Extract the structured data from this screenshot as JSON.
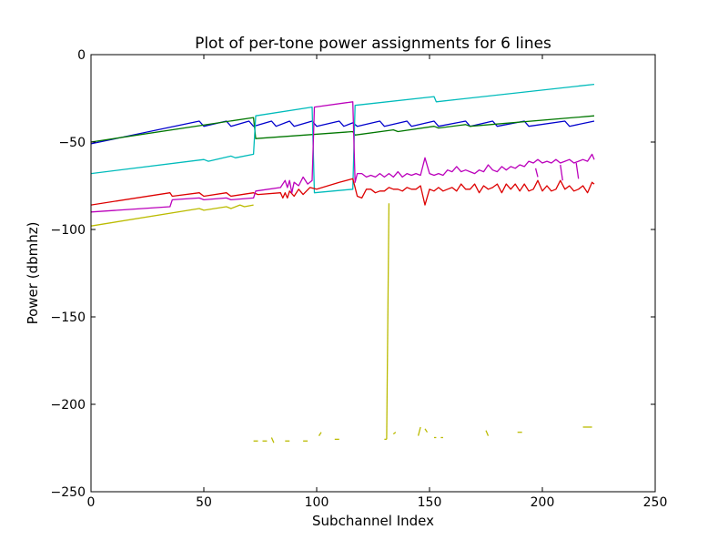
{
  "chart_data": {
    "type": "line",
    "title": "Plot of per-tone power assignments for 6 lines",
    "xlabel": "Subchannel Index",
    "ylabel": "Power (dbmhz)",
    "xlim": [
      0,
      250
    ],
    "ylim": [
      -250,
      0
    ],
    "xticks": [
      0,
      50,
      100,
      150,
      200,
      250
    ],
    "yticks": [
      0,
      -50,
      -100,
      -150,
      -200,
      -250
    ],
    "grid": false,
    "legend": "none",
    "series": [
      {
        "color": "#0000cc",
        "segments": [
          [
            [
              0,
              -51
            ],
            [
              48,
              -38
            ],
            [
              50,
              -41
            ],
            [
              60,
              -38
            ],
            [
              62,
              -41
            ],
            [
              70,
              -38
            ],
            [
              72,
              -41
            ],
            [
              80,
              -38
            ],
            [
              82,
              -41
            ],
            [
              88,
              -38
            ],
            [
              90,
              -41
            ],
            [
              98,
              -38
            ],
            [
              100,
              -41
            ],
            [
              110,
              -38
            ],
            [
              112,
              -41
            ],
            [
              116,
              -39
            ],
            [
              118,
              -41
            ],
            [
              128,
              -38
            ],
            [
              130,
              -41
            ],
            [
              140,
              -38
            ],
            [
              142,
              -41
            ],
            [
              152,
              -38
            ],
            [
              154,
              -41
            ],
            [
              166,
              -38
            ],
            [
              168,
              -41
            ],
            [
              178,
              -38
            ],
            [
              180,
              -41
            ],
            [
              192,
              -38
            ],
            [
              194,
              -41
            ],
            [
              210,
              -38
            ],
            [
              212,
              -41
            ],
            [
              223,
              -38
            ]
          ]
        ]
      },
      {
        "color": "#007700",
        "segments": [
          [
            [
              0,
              -50
            ],
            [
              72,
              -36
            ],
            [
              73,
              -48
            ],
            [
              116,
              -44
            ],
            [
              117,
              -46
            ],
            [
              134,
              -43
            ],
            [
              136,
              -44
            ],
            [
              152,
              -41
            ],
            [
              154,
              -42
            ],
            [
              166,
              -40
            ],
            [
              168,
              -41
            ],
            [
              223,
              -35
            ]
          ]
        ]
      },
      {
        "color": "#00bbbb",
        "segments": [
          [
            [
              0,
              -68
            ],
            [
              50,
              -60
            ],
            [
              52,
              -61
            ],
            [
              62,
              -58
            ],
            [
              64,
              -59
            ],
            [
              72,
              -57
            ],
            [
              73,
              -35
            ],
            [
              98,
              -30
            ],
            [
              99,
              -79
            ],
            [
              116,
              -77
            ],
            [
              117,
              -29
            ],
            [
              152,
              -24
            ],
            [
              153,
              -27
            ],
            [
              223,
              -17
            ]
          ]
        ]
      },
      {
        "color": "#dd0000",
        "segments": [
          [
            [
              0,
              -86
            ],
            [
              35,
              -79
            ],
            [
              36,
              -81
            ],
            [
              48,
              -79
            ],
            [
              50,
              -81
            ],
            [
              60,
              -79
            ],
            [
              62,
              -81
            ],
            [
              72,
              -79
            ],
            [
              74,
              -80
            ],
            [
              84,
              -79
            ],
            [
              85,
              -82
            ],
            [
              86,
              -79
            ],
            [
              87,
              -82
            ],
            [
              88,
              -78
            ],
            [
              90,
              -81
            ],
            [
              92,
              -77
            ],
            [
              94,
              -80
            ],
            [
              97,
              -76
            ],
            [
              100,
              -77
            ],
            [
              105,
              -75
            ],
            [
              110,
              -73
            ],
            [
              116,
              -71
            ],
            [
              117,
              -76
            ],
            [
              118,
              -81
            ],
            [
              120,
              -82
            ],
            [
              122,
              -77
            ],
            [
              124,
              -77
            ],
            [
              126,
              -79
            ],
            [
              128,
              -78
            ],
            [
              130,
              -78
            ],
            [
              132,
              -76
            ],
            [
              134,
              -77
            ],
            [
              136,
              -77
            ],
            [
              138,
              -78
            ],
            [
              140,
              -76
            ],
            [
              142,
              -77
            ],
            [
              144,
              -77
            ],
            [
              146,
              -75
            ],
            [
              148,
              -86
            ],
            [
              150,
              -77
            ],
            [
              152,
              -78
            ],
            [
              154,
              -76
            ],
            [
              156,
              -78
            ],
            [
              158,
              -77
            ],
            [
              160,
              -76
            ],
            [
              162,
              -78
            ],
            [
              164,
              -74
            ],
            [
              166,
              -77
            ],
            [
              168,
              -77
            ],
            [
              170,
              -74
            ],
            [
              172,
              -79
            ],
            [
              174,
              -75
            ],
            [
              176,
              -77
            ],
            [
              178,
              -76
            ],
            [
              180,
              -74
            ],
            [
              182,
              -79
            ],
            [
              184,
              -74
            ],
            [
              186,
              -77
            ],
            [
              188,
              -74
            ],
            [
              190,
              -78
            ],
            [
              192,
              -74
            ],
            [
              194,
              -78
            ],
            [
              196,
              -77
            ],
            [
              198,
              -72
            ],
            [
              200,
              -78
            ],
            [
              202,
              -75
            ],
            [
              204,
              -78
            ],
            [
              206,
              -77
            ],
            [
              208,
              -72
            ],
            [
              210,
              -77
            ],
            [
              212,
              -75
            ],
            [
              214,
              -78
            ],
            [
              216,
              -77
            ],
            [
              218,
              -75
            ],
            [
              220,
              -79
            ],
            [
              222,
              -73
            ],
            [
              223,
              -74
            ]
          ]
        ]
      },
      {
        "color": "#bb00bb",
        "segments": [
          [
            [
              0,
              -90
            ],
            [
              35,
              -87
            ],
            [
              36,
              -83
            ],
            [
              48,
              -82
            ],
            [
              50,
              -83
            ],
            [
              60,
              -82
            ],
            [
              62,
              -83
            ],
            [
              72,
              -82
            ],
            [
              73,
              -78
            ],
            [
              84,
              -76
            ],
            [
              86,
              -72
            ],
            [
              87,
              -76
            ],
            [
              88,
              -72
            ],
            [
              89,
              -79
            ],
            [
              90,
              -73
            ],
            [
              92,
              -75
            ],
            [
              94,
              -70
            ],
            [
              96,
              -74
            ],
            [
              98,
              -72
            ],
            [
              99,
              -30
            ],
            [
              116,
              -27
            ],
            [
              117,
              -73
            ],
            [
              118,
              -68
            ],
            [
              120,
              -68
            ],
            [
              122,
              -70
            ],
            [
              124,
              -69
            ],
            [
              126,
              -70
            ],
            [
              128,
              -68
            ],
            [
              130,
              -70
            ],
            [
              132,
              -68
            ],
            [
              134,
              -70
            ],
            [
              136,
              -67
            ],
            [
              138,
              -70
            ],
            [
              140,
              -68
            ],
            [
              142,
              -69
            ],
            [
              144,
              -68
            ],
            [
              146,
              -69
            ],
            [
              148,
              -59
            ],
            [
              150,
              -68
            ],
            [
              152,
              -69
            ],
            [
              154,
              -68
            ],
            [
              156,
              -69
            ],
            [
              158,
              -66
            ],
            [
              160,
              -67
            ],
            [
              162,
              -64
            ],
            [
              164,
              -67
            ],
            [
              166,
              -66
            ],
            [
              168,
              -67
            ],
            [
              170,
              -68
            ],
            [
              172,
              -66
            ],
            [
              174,
              -67
            ],
            [
              176,
              -63
            ],
            [
              178,
              -66
            ],
            [
              180,
              -67
            ],
            [
              182,
              -64
            ],
            [
              184,
              -66
            ],
            [
              186,
              -64
            ],
            [
              188,
              -65
            ],
            [
              190,
              -63
            ],
            [
              192,
              -64
            ],
            [
              194,
              -61
            ],
            [
              196,
              -62
            ],
            [
              198,
              -60
            ],
            [
              200,
              -62
            ],
            [
              202,
              -61
            ],
            [
              204,
              -62
            ],
            [
              206,
              -60
            ],
            [
              208,
              -62
            ],
            [
              210,
              -61
            ],
            [
              212,
              -60
            ],
            [
              214,
              -62
            ],
            [
              216,
              -61
            ],
            [
              218,
              -60
            ],
            [
              220,
              -61
            ],
            [
              222,
              -57
            ],
            [
              223,
              -60
            ]
          ],
          [
            [
              197,
              -65
            ],
            [
              198,
              -70
            ]
          ],
          [
            [
              208,
              -63
            ],
            [
              209,
              -72
            ]
          ],
          [
            [
              215,
              -62
            ],
            [
              216,
              -71
            ]
          ]
        ]
      },
      {
        "color": "#bbbb00",
        "segments": [
          [
            [
              0,
              -98
            ],
            [
              48,
              -88
            ],
            [
              50,
              -89
            ],
            [
              60,
              -87
            ],
            [
              62,
              -88
            ],
            [
              66,
              -86
            ],
            [
              68,
              -87
            ],
            [
              72,
              -86
            ]
          ],
          [
            [
              131,
              -220
            ],
            [
              132,
              -85
            ]
          ],
          [
            [
              72,
              -221
            ],
            [
              74,
              -221
            ]
          ],
          [
            [
              76,
              -221
            ],
            [
              78,
              -221
            ]
          ],
          [
            [
              80,
              -219
            ],
            [
              81,
              -222
            ]
          ],
          [
            [
              86,
              -221
            ],
            [
              88,
              -221
            ]
          ],
          [
            [
              94,
              -221
            ],
            [
              96,
              -221
            ]
          ],
          [
            [
              101,
              -218
            ],
            [
              102,
              -216
            ]
          ],
          [
            [
              108,
              -220
            ],
            [
              110,
              -220
            ]
          ],
          [
            [
              130,
              -220
            ],
            [
              131,
              -220
            ]
          ],
          [
            [
              134,
              -217
            ],
            [
              135,
              -216
            ]
          ],
          [
            [
              145,
              -218
            ],
            [
              146,
              -213
            ]
          ],
          [
            [
              148,
              -214
            ],
            [
              149,
              -216
            ]
          ],
          [
            [
              152,
              -219
            ],
            [
              153,
              -219
            ]
          ],
          [
            [
              155,
              -219
            ],
            [
              156,
              -219
            ]
          ],
          [
            [
              175,
              -215
            ],
            [
              176,
              -218
            ]
          ],
          [
            [
              189,
              -216
            ],
            [
              191,
              -216
            ]
          ],
          [
            [
              218,
              -213
            ],
            [
              222,
              -213
            ]
          ]
        ]
      }
    ]
  }
}
